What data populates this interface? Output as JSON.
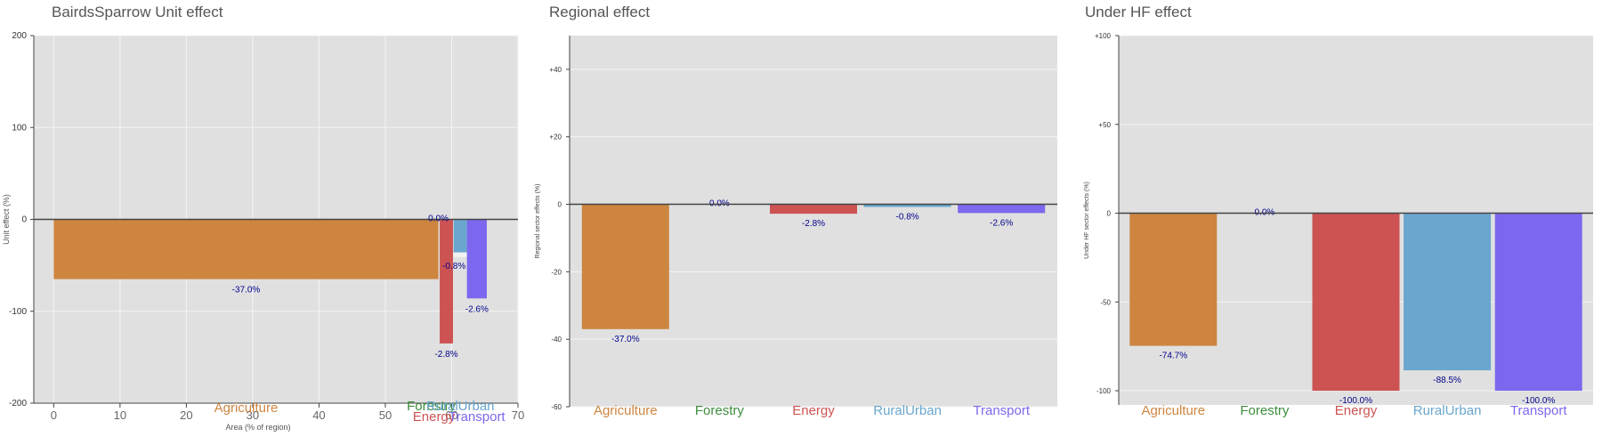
{
  "sector_colors": {
    "Agriculture": "#cd853f",
    "Forestry": "#3c8d3c",
    "Energy": "#cd5353",
    "RuralUrban": "#6aa6cd",
    "Transport": "#7b68ee"
  },
  "label_color": "#00008b",
  "panel_background": "#e0e0e0",
  "chart_data": [
    {
      "type": "bar",
      "title": "BairdsSparrow Unit effect",
      "xlabel": "Area (% of region)",
      "ylabel": "Unit effect (%)",
      "xlim": [
        -3,
        70
      ],
      "ylim": [
        -200,
        200
      ],
      "xticks": [
        0,
        10,
        20,
        30,
        40,
        50,
        60,
        70
      ],
      "yticks": [
        -200,
        -100,
        0,
        100,
        200
      ],
      "ytick_labels": [
        "-200",
        "-100",
        "0",
        "100",
        "200"
      ],
      "grid": true,
      "categories": [
        "Agriculture",
        "Forestry",
        "Energy",
        "RuralUrban",
        "Transport"
      ],
      "bars": [
        {
          "sector": "Agriculture",
          "x_start": 0,
          "x_end": 58,
          "unit_effect": -65,
          "inner_effect": null,
          "label": "-37.0%"
        },
        {
          "sector": "Forestry",
          "x_start": 58,
          "x_end": 58,
          "unit_effect": 0,
          "inner_effect": null,
          "label": "0.0%"
        },
        {
          "sector": "Energy",
          "x_start": 58.2,
          "x_end": 60.2,
          "unit_effect": -135,
          "inner_effect": null,
          "label": "-2.8%"
        },
        {
          "sector": "RuralUrban",
          "x_start": 60.3,
          "x_end": 62.3,
          "unit_effect": -36,
          "inner_effect": -5,
          "label": "-0.8%"
        },
        {
          "sector": "Transport",
          "x_start": 62.3,
          "x_end": 65.3,
          "unit_effect": -86,
          "inner_effect": null,
          "label": "-2.6%"
        }
      ],
      "sector_labels": [
        "Agriculture",
        "Forestry",
        "Energy",
        "RuralUrban",
        "Transport"
      ]
    },
    {
      "type": "bar",
      "title": "Regional effect",
      "ylabel": "Regional sector effects (%)",
      "ylim": [
        -60,
        50
      ],
      "yticks": [
        -60,
        -40,
        -20,
        0,
        20,
        40
      ],
      "ytick_labels": [
        "-60",
        "-40",
        "-20",
        "0",
        "+20",
        "+40"
      ],
      "grid": true,
      "categories": [
        "Agriculture",
        "Forestry",
        "Energy",
        "RuralUrban",
        "Transport"
      ],
      "values": [
        -37.0,
        0.0,
        -2.8,
        -0.8,
        -2.6
      ],
      "labels": [
        "-37.0%",
        "0.0%",
        "-2.8%",
        "-0.8%",
        "-2.6%"
      ]
    },
    {
      "type": "bar",
      "title": "Under HF effect",
      "ylabel": "Under HF sector effects (%)",
      "ylim": [
        -108,
        100
      ],
      "yticks": [
        -100,
        -50,
        0,
        50,
        100
      ],
      "ytick_labels": [
        "-100",
        "-50",
        "0",
        "+50",
        "+100"
      ],
      "grid": true,
      "categories": [
        "Agriculture",
        "Forestry",
        "Energy",
        "RuralUrban",
        "Transport"
      ],
      "values": [
        -74.7,
        0.0,
        -100.0,
        -88.5,
        -100.0
      ],
      "labels": [
        "-74.7%",
        "0.0%",
        "-100.0%",
        "-88.5%",
        "-100.0%"
      ]
    }
  ]
}
